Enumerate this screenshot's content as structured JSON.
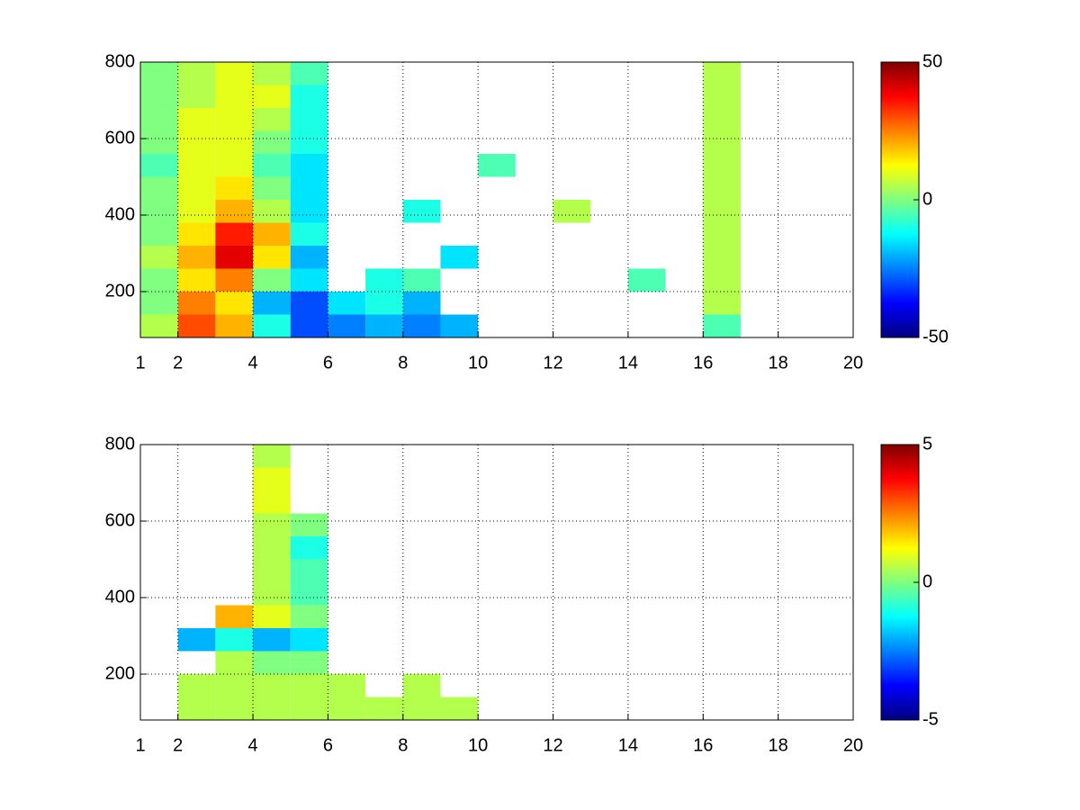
{
  "chart_data": [
    {
      "type": "heatmap",
      "colormap": "jet",
      "grid": true,
      "x": [
        1.5,
        2.5,
        3.5,
        4.5,
        5.5,
        6.5,
        7.5,
        8.5,
        9.5,
        10.5,
        11.5,
        12.5,
        13.5,
        14.5,
        15.5,
        16.5,
        17.5,
        18.5,
        19.5
      ],
      "y": [
        110,
        170,
        230,
        290,
        350,
        410,
        470,
        530,
        590,
        650,
        710,
        770
      ],
      "values": [
        [
          5,
          30,
          20,
          -10,
          -30,
          -25,
          -20,
          -25,
          -20,
          null,
          null,
          null,
          null,
          null,
          null,
          -5,
          null,
          null,
          null
        ],
        [
          0,
          25,
          15,
          -20,
          -30,
          -15,
          -10,
          -20,
          null,
          null,
          null,
          null,
          null,
          null,
          null,
          5,
          null,
          null,
          null
        ],
        [
          0,
          15,
          25,
          0,
          -15,
          null,
          -10,
          -5,
          null,
          null,
          null,
          null,
          null,
          -5,
          null,
          5,
          null,
          null,
          null
        ],
        [
          5,
          20,
          40,
          15,
          -20,
          null,
          null,
          null,
          -15,
          null,
          null,
          null,
          null,
          null,
          null,
          5,
          null,
          null,
          null
        ],
        [
          0,
          15,
          35,
          20,
          -10,
          null,
          null,
          null,
          null,
          null,
          null,
          null,
          null,
          null,
          null,
          5,
          null,
          null,
          null
        ],
        [
          0,
          10,
          20,
          5,
          -15,
          null,
          null,
          -10,
          null,
          null,
          null,
          5,
          null,
          null,
          null,
          5,
          null,
          null,
          null
        ],
        [
          0,
          10,
          15,
          0,
          -15,
          null,
          null,
          null,
          null,
          null,
          null,
          null,
          null,
          null,
          null,
          5,
          null,
          null,
          null
        ],
        [
          -5,
          10,
          10,
          -5,
          -15,
          null,
          null,
          null,
          null,
          -5,
          null,
          null,
          null,
          null,
          null,
          5,
          null,
          null,
          null
        ],
        [
          0,
          10,
          10,
          0,
          -10,
          null,
          null,
          null,
          null,
          null,
          null,
          null,
          null,
          null,
          null,
          5,
          null,
          null,
          null
        ],
        [
          0,
          10,
          10,
          5,
          -10,
          null,
          null,
          null,
          null,
          null,
          null,
          null,
          null,
          null,
          null,
          5,
          null,
          null,
          null
        ],
        [
          0,
          5,
          10,
          10,
          -10,
          null,
          null,
          null,
          null,
          null,
          null,
          null,
          null,
          null,
          null,
          5,
          null,
          null,
          null
        ],
        [
          0,
          5,
          10,
          5,
          -5,
          null,
          null,
          null,
          null,
          null,
          null,
          null,
          null,
          null,
          null,
          5,
          null,
          null,
          null
        ]
      ],
      "xlim": [
        1,
        20
      ],
      "xticks": [
        1,
        2,
        4,
        6,
        8,
        10,
        12,
        14,
        16,
        18,
        20
      ],
      "ylim": [
        80,
        800
      ],
      "yticks": [
        200,
        400,
        600,
        800
      ],
      "clim": [
        -50,
        50
      ],
      "cticks": [
        -50,
        0,
        50
      ]
    },
    {
      "type": "heatmap",
      "colormap": "jet",
      "grid": true,
      "x": [
        1.5,
        2.5,
        3.5,
        4.5,
        5.5,
        6.5,
        7.5,
        8.5,
        9.5,
        10.5,
        11.5,
        12.5,
        13.5,
        14.5,
        15.5,
        16.5,
        17.5,
        18.5,
        19.5
      ],
      "y": [
        110,
        170,
        230,
        290,
        350,
        410,
        470,
        530,
        590,
        650,
        710,
        770
      ],
      "values": [
        [
          null,
          0.5,
          0.5,
          0.5,
          0.5,
          0.5,
          0.5,
          0.5,
          0.5,
          null,
          null,
          null,
          null,
          null,
          null,
          null,
          null,
          null,
          null
        ],
        [
          null,
          0.5,
          0.5,
          0.5,
          0.5,
          0.5,
          null,
          0.5,
          null,
          null,
          null,
          null,
          null,
          null,
          null,
          null,
          null,
          null,
          null
        ],
        [
          null,
          null,
          0.5,
          0,
          0,
          null,
          null,
          null,
          null,
          null,
          null,
          null,
          null,
          null,
          null,
          null,
          null,
          null,
          null
        ],
        [
          null,
          -2,
          -1,
          -2,
          -1.5,
          null,
          null,
          null,
          null,
          null,
          null,
          null,
          null,
          null,
          null,
          null,
          null,
          null,
          null
        ],
        [
          null,
          null,
          2,
          1,
          0,
          null,
          null,
          null,
          null,
          null,
          null,
          null,
          null,
          null,
          null,
          null,
          null,
          null,
          null
        ],
        [
          null,
          null,
          null,
          0.5,
          -0.5,
          null,
          null,
          null,
          null,
          null,
          null,
          null,
          null,
          null,
          null,
          null,
          null,
          null,
          null
        ],
        [
          null,
          null,
          null,
          0.5,
          -0.5,
          null,
          null,
          null,
          null,
          null,
          null,
          null,
          null,
          null,
          null,
          null,
          null,
          null,
          null
        ],
        [
          null,
          null,
          null,
          0.5,
          -1,
          null,
          null,
          null,
          null,
          null,
          null,
          null,
          null,
          null,
          null,
          null,
          null,
          null,
          null
        ],
        [
          null,
          null,
          null,
          0.5,
          0,
          null,
          null,
          null,
          null,
          null,
          null,
          null,
          null,
          null,
          null,
          null,
          null,
          null,
          null
        ],
        [
          null,
          null,
          null,
          1,
          null,
          null,
          null,
          null,
          null,
          null,
          null,
          null,
          null,
          null,
          null,
          null,
          null,
          null,
          null
        ],
        [
          null,
          null,
          null,
          1,
          null,
          null,
          null,
          null,
          null,
          null,
          null,
          null,
          null,
          null,
          null,
          null,
          null,
          null,
          null
        ],
        [
          null,
          null,
          null,
          0.5,
          null,
          null,
          null,
          null,
          null,
          null,
          null,
          null,
          null,
          null,
          null,
          null,
          null,
          null,
          null
        ]
      ],
      "xlim": [
        1,
        20
      ],
      "xticks": [
        1,
        2,
        4,
        6,
        8,
        10,
        12,
        14,
        16,
        18,
        20
      ],
      "ylim": [
        80,
        800
      ],
      "yticks": [
        200,
        400,
        600,
        800
      ],
      "clim": [
        -5,
        5
      ],
      "cticks": [
        -5,
        0,
        5
      ]
    }
  ]
}
